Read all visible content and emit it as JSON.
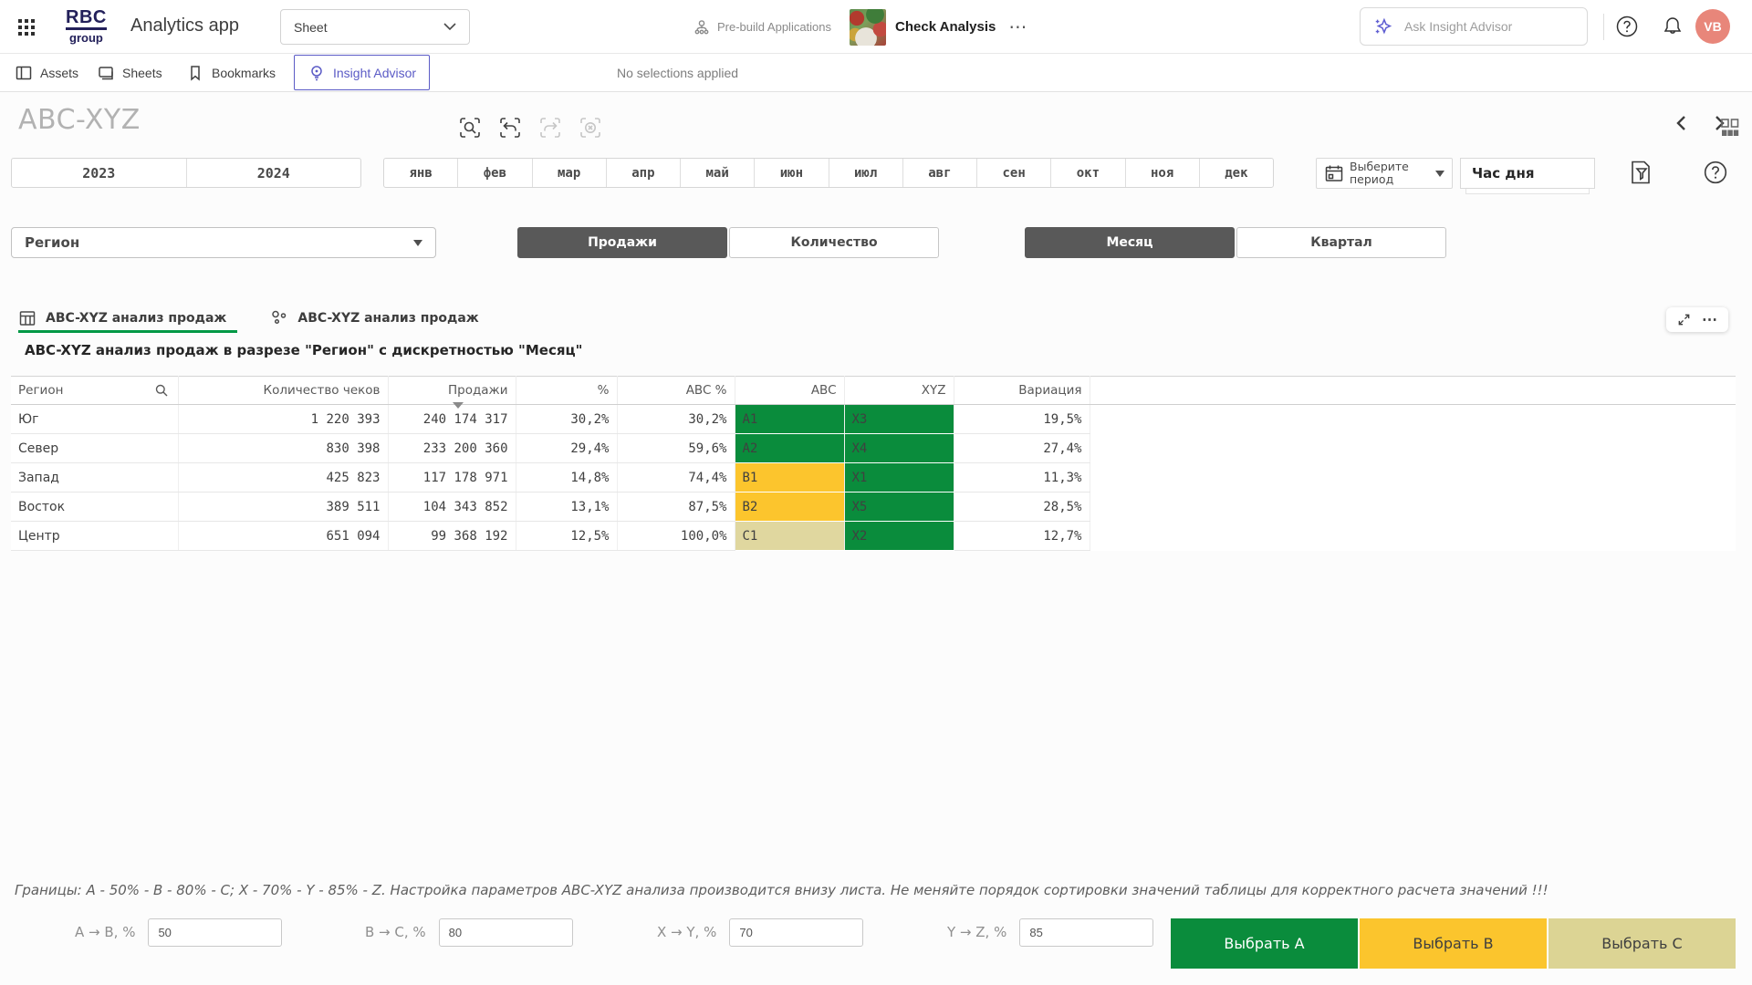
{
  "header": {
    "logo_line1": "RBC",
    "logo_line2": "group",
    "app_title": "Analytics app",
    "sheet_selector": "Sheet",
    "prebuild_label": "Pre-build Applications",
    "app_name": "Check Analysis",
    "more_label": "⋯",
    "search_placeholder": "Ask Insight Advisor",
    "avatar_initials": "VB"
  },
  "toolbar": {
    "assets": "Assets",
    "sheets": "Sheets",
    "bookmarks": "Bookmarks",
    "insight_advisor": "Insight Advisor",
    "selections_status": "No selections applied"
  },
  "sheet": {
    "title": "ABC-XYZ",
    "years": [
      "2023",
      "2024"
    ],
    "months": [
      "янв",
      "фев",
      "мар",
      "апр",
      "май",
      "июн",
      "июл",
      "авг",
      "сен",
      "окт",
      "ноя",
      "дек"
    ],
    "period_picker": "Выберите период",
    "hour_listbox": "Час дня",
    "region_dropdown": "Регион",
    "measure_toggle": [
      {
        "label": "Продажи",
        "active": true
      },
      {
        "label": "Количество",
        "active": false
      }
    ],
    "granularity_toggle": [
      {
        "label": "Месяц",
        "active": true
      },
      {
        "label": "Квартал",
        "active": false
      }
    ],
    "tabs": [
      {
        "label": "ABC-XYZ анализ продаж"
      },
      {
        "label": "ABC-XYZ анализ продаж"
      }
    ],
    "object_menu": "⋯",
    "chart_title": "ABC-XYZ анализ продаж в разрезе \"Регион\" с дискретностью \"Месяц\""
  },
  "table": {
    "columns": [
      "Регион",
      "Количество чеков",
      "Продажи",
      "%",
      "ABC %",
      "ABC",
      "XYZ",
      "Вариация"
    ],
    "rows": [
      {
        "region": "Юг",
        "checks": "1 220 393",
        "sales": "240 174 317",
        "pct": "30,2%",
        "abc_pct": "30,2%",
        "abc": "A1",
        "abc_class": "green",
        "xyz": "X3",
        "xyz_class": "green",
        "variation": "19,5%"
      },
      {
        "region": "Север",
        "checks": "830 398",
        "sales": "233 200 360",
        "pct": "29,4%",
        "abc_pct": "59,6%",
        "abc": "A2",
        "abc_class": "green",
        "xyz": "X4",
        "xyz_class": "green",
        "variation": "27,4%"
      },
      {
        "region": "Запад",
        "checks": "425 823",
        "sales": "117 178 971",
        "pct": "14,8%",
        "abc_pct": "74,4%",
        "abc": "B1",
        "abc_class": "yellow",
        "xyz": "X1",
        "xyz_class": "green",
        "variation": "11,3%"
      },
      {
        "region": "Восток",
        "checks": "389 511",
        "sales": "104 343 852",
        "pct": "13,1%",
        "abc_pct": "87,5%",
        "abc": "B2",
        "abc_class": "yellow",
        "xyz": "X5",
        "xyz_class": "green",
        "variation": "28,5%"
      },
      {
        "region": "Центр",
        "checks": "651 094",
        "sales": "99 368 192",
        "pct": "12,5%",
        "abc_pct": "100,0%",
        "abc": "C1",
        "abc_class": "khaki",
        "xyz": "X2",
        "xyz_class": "green",
        "variation": "12,7%"
      }
    ]
  },
  "footer": {
    "note": "Границы: A - 50% - B - 80% - C; X - 70% - Y - 85% - Z. Настройка параметров ABC-XYZ анализа производится внизу листа. Не меняйте порядок сортировки значений таблицы для корректного расчета значений !!!",
    "params": [
      {
        "label": "A → B, %",
        "value": "50"
      },
      {
        "label": "B → C, %",
        "value": "80"
      },
      {
        "label": "X → Y, %",
        "value": "70"
      },
      {
        "label": "Y → Z, %",
        "value": "85"
      }
    ],
    "buttons": [
      {
        "label": "Выбрать A",
        "class": "green"
      },
      {
        "label": "Выбрать B",
        "class": "yellow"
      },
      {
        "label": "Выбрать C",
        "class": "khaki"
      }
    ]
  },
  "colors": {
    "green": "#0a8c3c",
    "yellow": "#fcc52d",
    "khaki": "#e0d79f",
    "accent_purple": "#5b5bc6",
    "avatar": "#e8867a",
    "tab_underline": "#009845",
    "toggle_active": "#595959"
  }
}
